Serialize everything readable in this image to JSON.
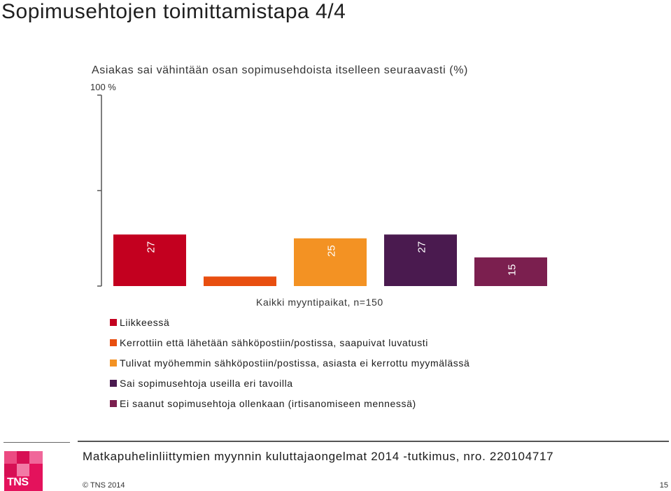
{
  "page": {
    "title": "Sopimusehtojen toimittamistapa 4/4"
  },
  "chart_data": {
    "type": "bar",
    "title": "Asiakas sai vähintään osan sopimusehdoista itselleen seuraavasti (%)",
    "y_max_label": "100 %",
    "ylim": [
      0,
      100
    ],
    "categories": [
      "Kaikki myyntipaikat, n=150"
    ],
    "series": [
      {
        "name": "Liikkeessä",
        "values": [
          27
        ],
        "label": "27",
        "color": "#c3001f"
      },
      {
        "name": "Kerrottiin että lähetään sähköpostiin/postissa, saapuivat luvatusti",
        "values": [
          5
        ],
        "label": "5",
        "color": "#e84e0f"
      },
      {
        "name": "Tulivat myöhemmin sähköpostiin/postissa, asiasta ei kerrottu myymälässä",
        "values": [
          25
        ],
        "label": "25",
        "color": "#f39223"
      },
      {
        "name": "Sai sopimusehtoja useilla eri tavoilla",
        "values": [
          27
        ],
        "label": "27",
        "color": "#4a1a4f"
      },
      {
        "name": "Ei saanut sopimusehtoja ollenkaan (irtisanomiseen mennessä)",
        "values": [
          15
        ],
        "label": "15",
        "color": "#7b1f4f"
      }
    ],
    "legend_position": "bottom",
    "grid": false
  },
  "footer": {
    "logo_text": "TNS",
    "study": "Matkapuhelinliittymien myynnin kuluttajaongelmat 2014 -tutkimus, nro. 220104717",
    "copyright": "© TNS 2014",
    "page_number": "15"
  }
}
